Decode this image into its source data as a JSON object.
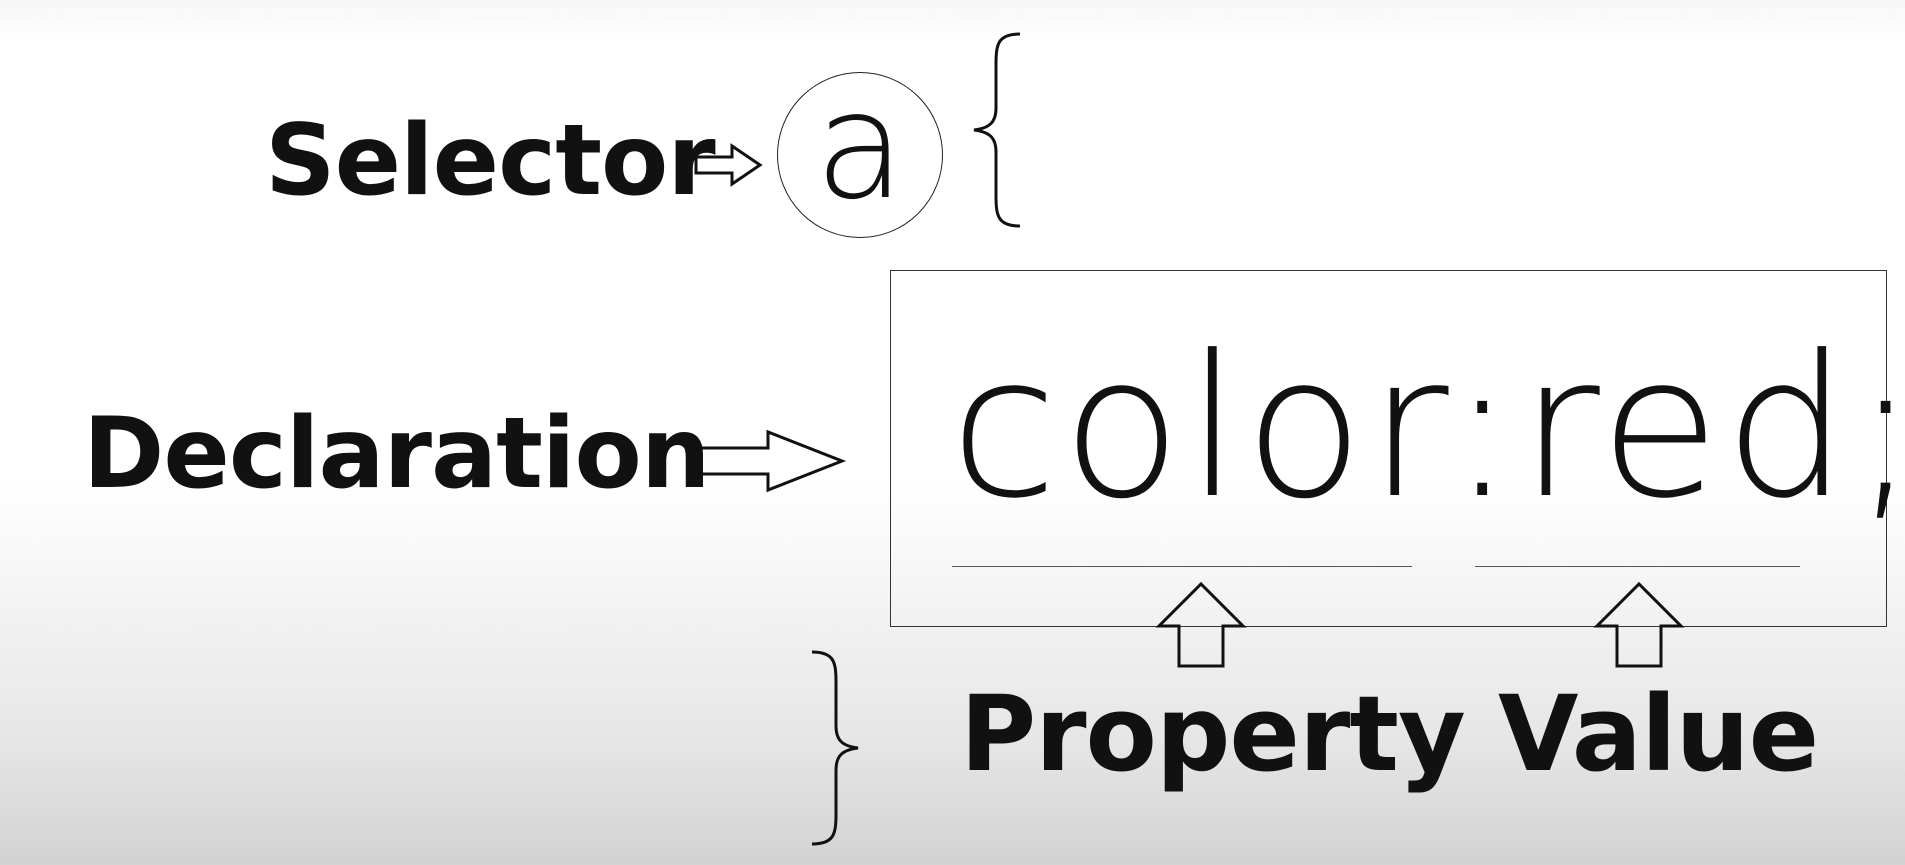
{
  "labels": {
    "selector": "Selector",
    "declaration": "Declaration",
    "property": "Property",
    "value": "Value"
  },
  "code": {
    "selector": "a",
    "open_brace": "{",
    "close_brace": "}",
    "declaration": "color:red;"
  },
  "colors": {
    "text": "#111111",
    "stroke": "#222222",
    "background_top": "#ffffff",
    "background_bottom": "#d2d2d2"
  }
}
